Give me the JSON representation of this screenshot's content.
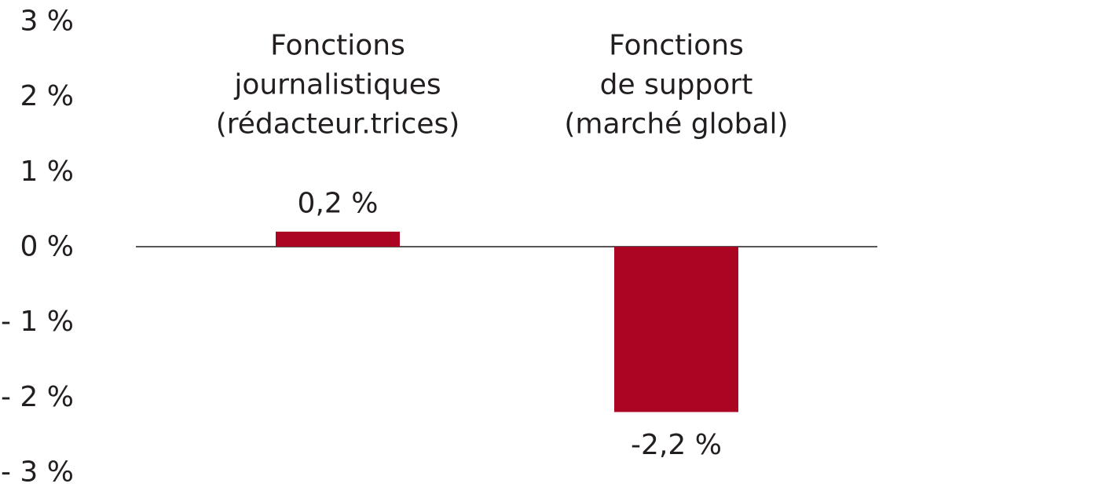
{
  "chart_data": {
    "type": "bar",
    "categories": [
      [
        "Fonctions",
        "journalistiques",
        "(rédacteur.trices)"
      ],
      [
        "Fonctions",
        "de support",
        "(marché global)"
      ]
    ],
    "values": [
      0.2,
      -2.2
    ],
    "data_labels": [
      "0,2 %",
      "-2,2 %"
    ],
    "ylim": [
      -3,
      3
    ],
    "yticks": [
      3,
      2,
      1,
      0,
      -1,
      -2,
      -3
    ],
    "ytick_labels": [
      "3 %",
      "2 %",
      "1 %",
      "0 %",
      "- 1 %",
      "- 2 %",
      "- 3 %"
    ],
    "bar_color": "#ac0523",
    "axis_color": "#231f20",
    "grid": false,
    "title": "",
    "xlabel": "",
    "ylabel": ""
  }
}
